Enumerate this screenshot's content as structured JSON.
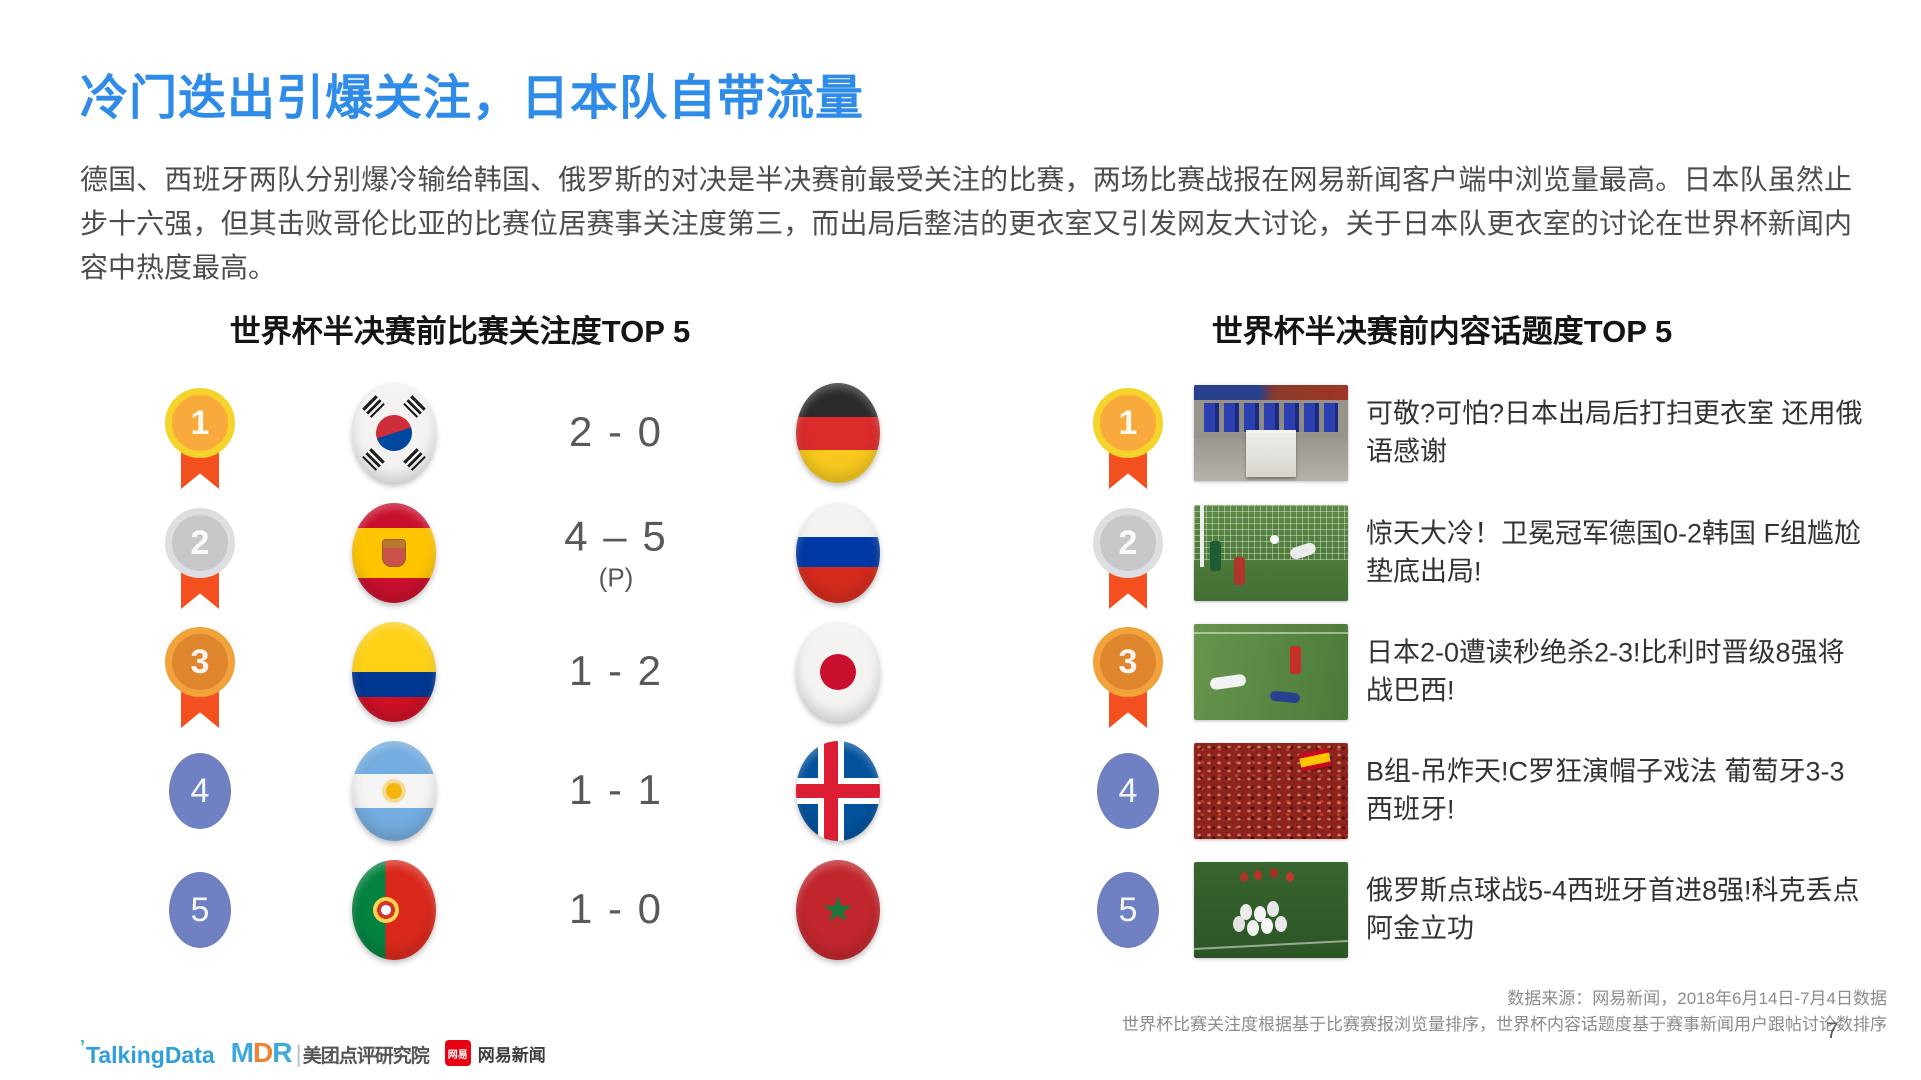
{
  "slide": {
    "title": "冷门迭出引爆关注，日本队自带流量",
    "body": "德国、西班牙两队分别爆冷输给韩国、俄罗斯的对决是半决赛前最受关注的比赛，两场比赛战报在网易新闻客户端中浏览量最高。日本队虽然止步十六强，但其击败哥伦比亚的比赛位居赛事关注度第三，而出局后整洁的更衣室又引发网友大讨论，关于日本队更衣室的讨论在世界杯新闻内容中热度最高。",
    "page_number": "7"
  },
  "colors": {
    "title_blue": "#2E8BE8",
    "medal_gold": "#F6D32B",
    "medal_silver": "#DEDEE0",
    "medal_bronze": "#F0A23B",
    "ribbon_orange": "#F4501F",
    "rank_blue": "#7081C3",
    "talkingdata_blue": "#2F9FDB",
    "mdr_orange": "#F08233",
    "netease_red": "#E60012"
  },
  "left_panel": {
    "title": "世界杯半决赛前比赛关注度TOP 5",
    "rows": [
      {
        "rank": "1",
        "medal": "gold",
        "team1_flag": "south-korea",
        "score": "2 - 0",
        "score_note": "",
        "team2_flag": "germany"
      },
      {
        "rank": "2",
        "medal": "silver",
        "team1_flag": "spain",
        "score": "4 – 5",
        "score_note": "(P)",
        "team2_flag": "russia"
      },
      {
        "rank": "3",
        "medal": "bronze",
        "team1_flag": "colombia",
        "score": "1 - 2",
        "score_note": "",
        "team2_flag": "japan"
      },
      {
        "rank": "4",
        "medal": "plain",
        "team1_flag": "argentina",
        "score": "1 - 1",
        "score_note": "",
        "team2_flag": "iceland"
      },
      {
        "rank": "5",
        "medal": "plain",
        "team1_flag": "portugal",
        "score": "1 - 0",
        "score_note": "",
        "team2_flag": "morocco"
      }
    ]
  },
  "right_panel": {
    "title": "世界杯半决赛前内容话题度TOP 5",
    "rows": [
      {
        "rank": "1",
        "medal": "gold",
        "image": "japan-locker-room",
        "headline": "可敬?可怕?日本出局后打扫更衣室 还用俄语感谢"
      },
      {
        "rank": "2",
        "medal": "silver",
        "image": "germany-korea-goal",
        "headline": "惊天大冷！卫冕冠军德国0-2韩国 F组尴尬垫底出局!"
      },
      {
        "rank": "3",
        "medal": "bronze",
        "image": "japan-belgium-pitch",
        "headline": "日本2-0遭读秒绝杀2-3!比利时晋级8强将战巴西!"
      },
      {
        "rank": "4",
        "medal": "plain",
        "image": "portugal-spain-fans",
        "headline": "B组-吊炸天!C罗狂演帽子戏法 葡萄牙3-3西班牙!"
      },
      {
        "rank": "5",
        "medal": "plain",
        "image": "russia-spain-celebration",
        "headline": "俄罗斯点球战5-4西班牙首进8强!科克丢点阿金立功"
      }
    ]
  },
  "footer": {
    "source_line1": "数据来源：网易新闻，2018年6月14日-7月4日数据",
    "source_line2": "世界杯比赛关注度根据基于比赛赛报浏览量排序，世界杯内容话题度基于赛事新闻用户跟帖讨论数排序",
    "logos": {
      "talkingdata_tick": "’",
      "talkingdata": "TalkingData",
      "mdr_m": "M",
      "mdr_d": "D",
      "mdr_r": "R",
      "mdr_sep": "|",
      "meituan": "美团点评研究院",
      "netease_icon": "网易",
      "netease": "网易新闻"
    }
  }
}
